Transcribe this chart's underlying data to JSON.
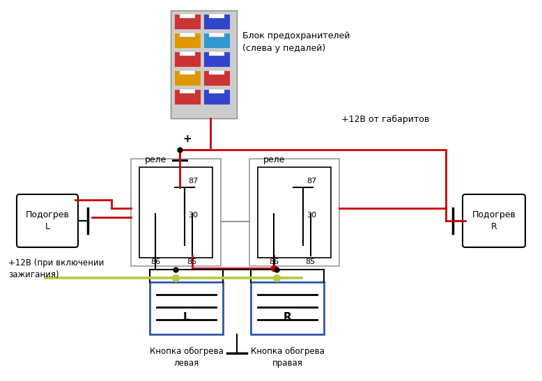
{
  "bg_color": "#ffffff",
  "RED": "#cc0000",
  "BLACK": "#000000",
  "GREEN": "#b5cc44",
  "GRAY": "#999999",
  "BLUE": "#3355aa",
  "fuse_box_label": "Блок предохранителей\n(слева у педалей)",
  "plus12v_gabarity": "+12В от габаритов",
  "plus12v_ignition": "+12В (при включении\nзажигания)",
  "relay_label": "реле",
  "heat_L": "Подогрев\nL",
  "heat_R": "Подогрев\nR",
  "btn_label_L": "Кнопка обогрева\nлевая",
  "btn_label_R": "Кнопка обогрева\nправая"
}
